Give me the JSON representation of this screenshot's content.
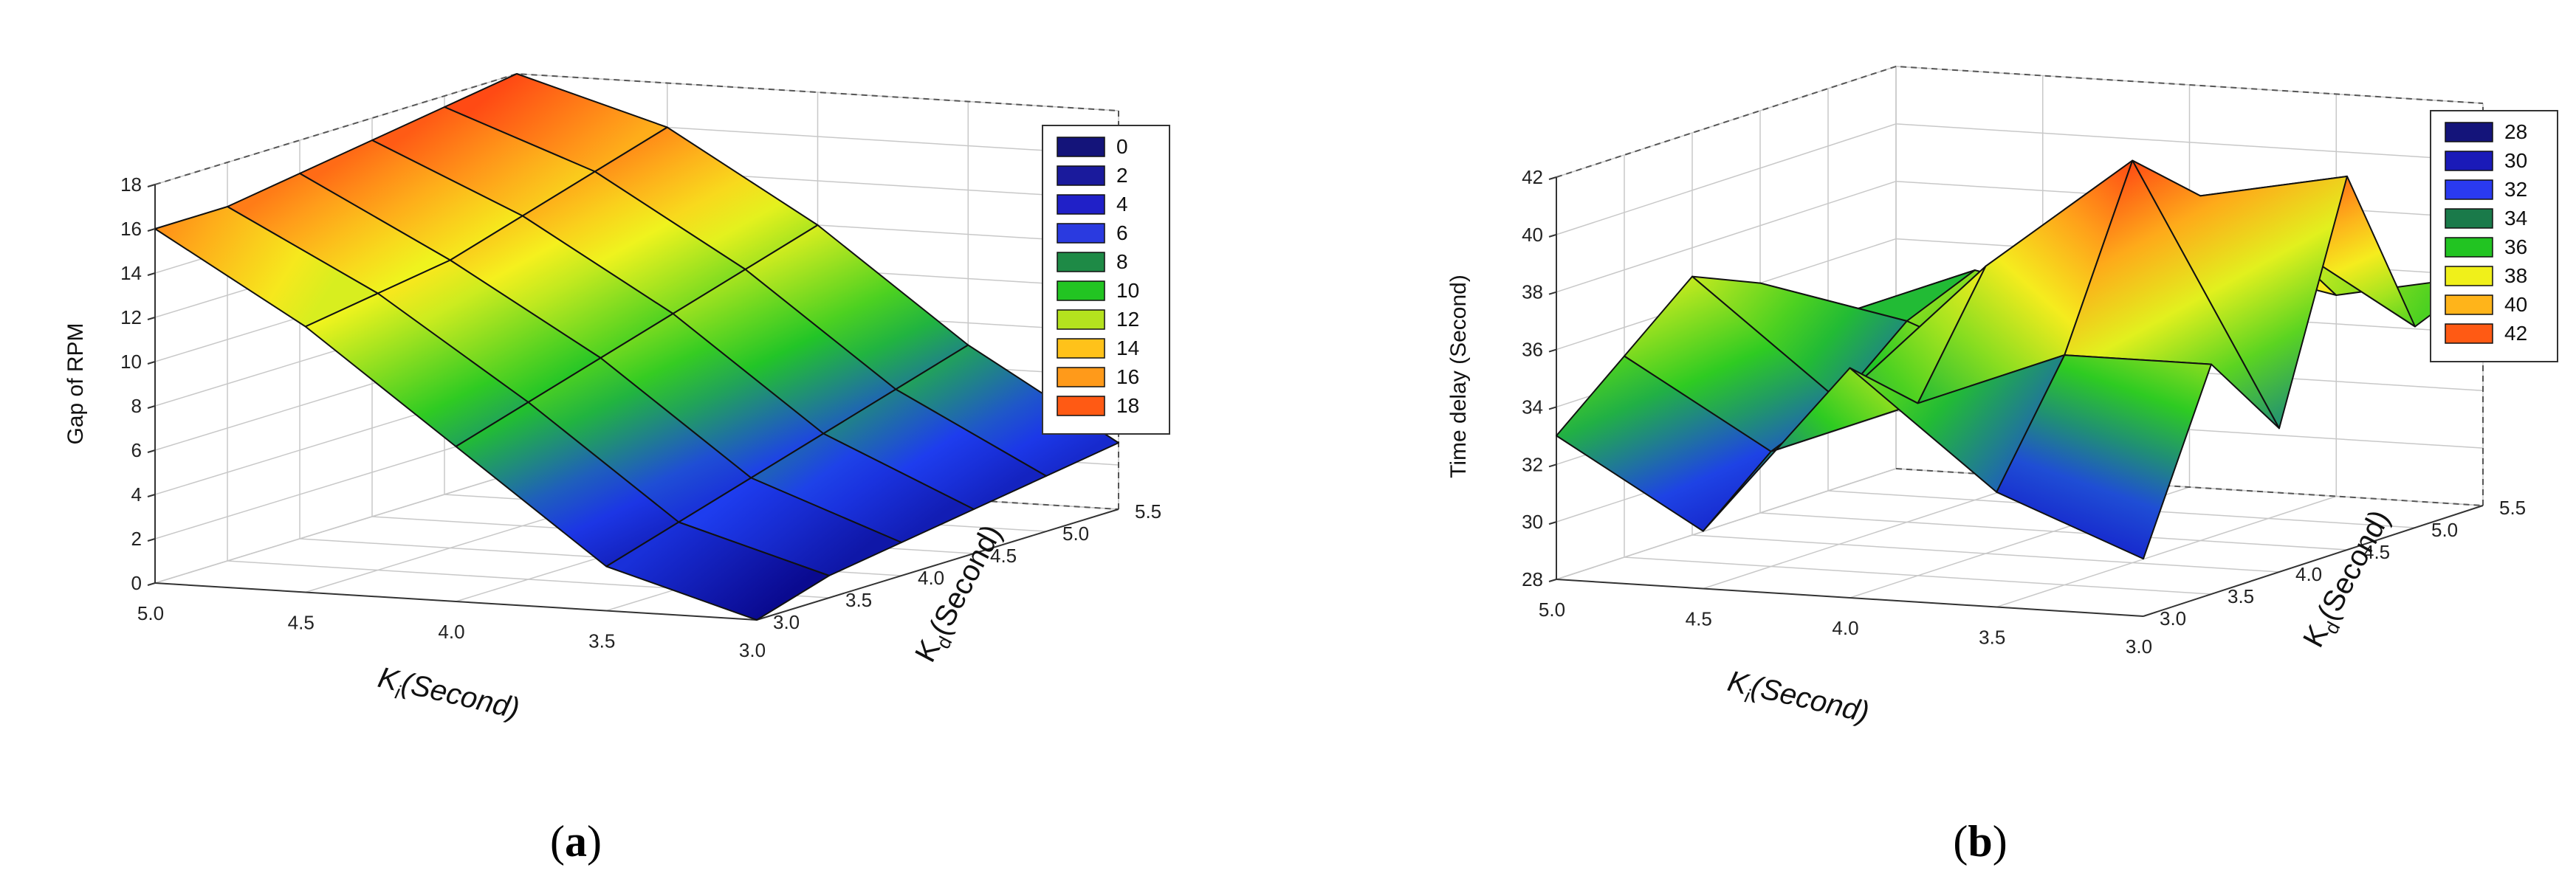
{
  "chart_data": [
    {
      "type": "surface3d",
      "panel": "a",
      "caption_open": "(",
      "caption_letter": "a",
      "caption_close": ")",
      "zlabel": "Gap of RPM",
      "xlabel_main": "K",
      "xlabel_sub": "i",
      "xlabel_rest": "(Second)",
      "ylabel_main": "K",
      "ylabel_sub": "d",
      "ylabel_rest": "(Second)",
      "x_ticks": [
        "5.0",
        "4.5",
        "4.0",
        "3.5",
        "3.0"
      ],
      "y_ticks": [
        "3.0",
        "3.5",
        "4.0",
        "4.5",
        "5.0",
        "5.5"
      ],
      "z_ticks": [
        "0",
        "2",
        "4",
        "6",
        "8",
        "10",
        "12",
        "14",
        "16",
        "18"
      ],
      "ki": [
        5.0,
        4.5,
        4.0,
        3.5,
        3.0
      ],
      "kd": [
        3.0,
        3.5,
        4.0,
        4.5,
        5.0,
        5.5
      ],
      "zlim": [
        0,
        18
      ],
      "z": [
        [
          16,
          12,
          7,
          2,
          0
        ],
        [
          16,
          12.5,
          8,
          3,
          1
        ],
        [
          16.5,
          13,
          9,
          4,
          1.5
        ],
        [
          17,
          14,
          10,
          5,
          2
        ],
        [
          17.5,
          15,
          11,
          6,
          2.5
        ],
        [
          18,
          16,
          12,
          7,
          3
        ]
      ],
      "legend": {
        "labels": [
          "0",
          "2",
          "4",
          "6",
          "8",
          "10",
          "12",
          "14",
          "16",
          "18"
        ],
        "colors": [
          "#14147a",
          "#1a1a9c",
          "#2020c8",
          "#2a3ae0",
          "#1e8a46",
          "#22c422",
          "#b4e21e",
          "#ffc21a",
          "#ff9a1a",
          "#ff5a14"
        ]
      }
    },
    {
      "type": "surface3d",
      "panel": "b",
      "caption_open": "(",
      "caption_letter": "b",
      "caption_close": ")",
      "zlabel": "Time delay (Second)",
      "xlabel_main": "K",
      "xlabel_sub": "i",
      "xlabel_rest": "(Second)",
      "ylabel_main": "K",
      "ylabel_sub": "d",
      "ylabel_rest": "(Second)",
      "x_ticks": [
        "5.0",
        "4.5",
        "4.0",
        "3.5",
        "3.0"
      ],
      "y_ticks": [
        "3.0",
        "3.5",
        "4.0",
        "4.5",
        "5.0",
        "5.5"
      ],
      "z_ticks": [
        "28",
        "30",
        "32",
        "34",
        "36",
        "38",
        "40",
        "42"
      ],
      "ki": [
        5.0,
        4.5,
        4.0,
        3.5,
        3.0
      ],
      "kd": [
        3.0,
        3.5,
        4.0,
        4.5,
        5.0,
        5.5
      ],
      "zlim": [
        28,
        42
      ],
      "z": [
        [
          33,
          30,
          36,
          32,
          30
        ],
        [
          35,
          32,
          34,
          36,
          36
        ],
        [
          37,
          33,
          38,
          42,
          33
        ],
        [
          36,
          35,
          33,
          40,
          41
        ],
        [
          34,
          36,
          35,
          38,
          35
        ],
        [
          33,
          34,
          36,
          35,
          36
        ]
      ],
      "legend": {
        "labels": [
          "28",
          "30",
          "32",
          "34",
          "36",
          "38",
          "40",
          "42"
        ],
        "colors": [
          "#14147a",
          "#1a1ab8",
          "#2a3af0",
          "#1a7a4a",
          "#22c422",
          "#f0f01a",
          "#ffb41a",
          "#ff5a14"
        ]
      }
    }
  ]
}
